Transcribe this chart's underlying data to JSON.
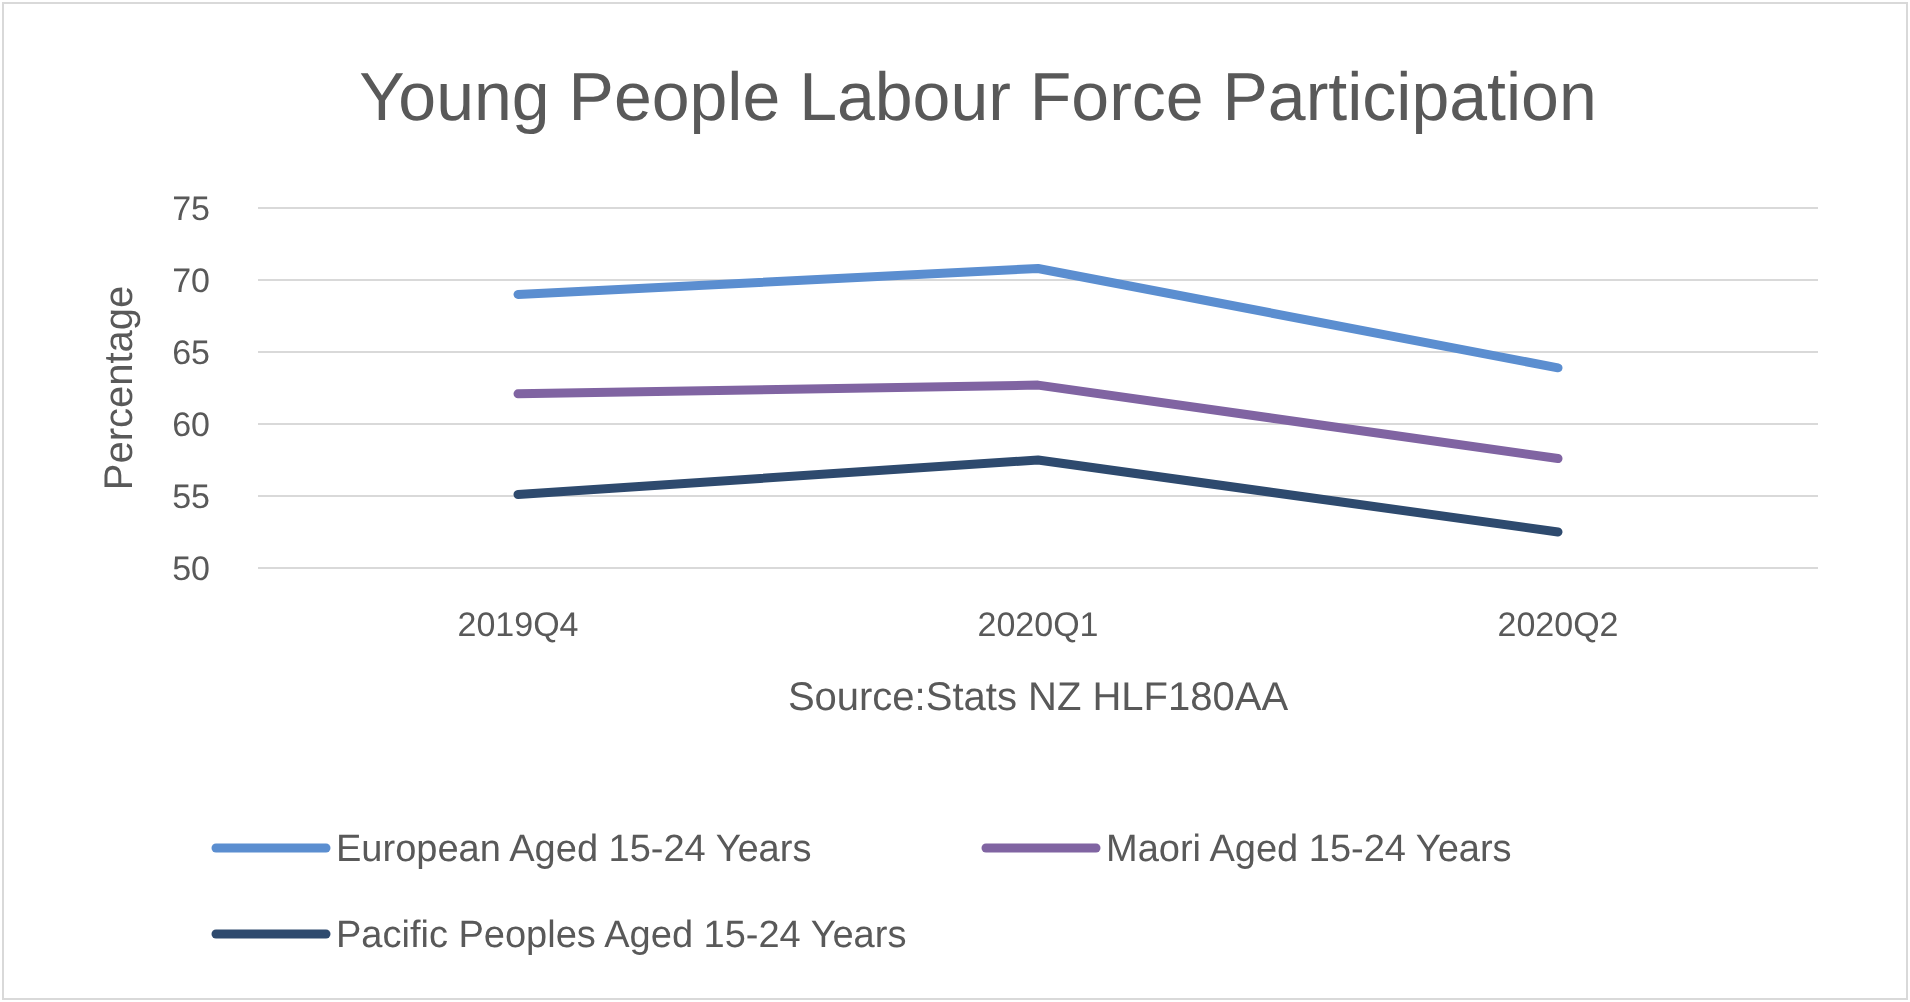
{
  "chart_data": {
    "type": "line",
    "title": "Young People Labour Force Participation",
    "xlabel": "Source:Stats NZ HLF180AA",
    "ylabel": "Percentage",
    "categories": [
      "2019Q4",
      "2020Q1",
      "2020Q2"
    ],
    "series": [
      {
        "name": "European Aged 15-24 Years",
        "color": "#5b8ed0",
        "values": [
          69,
          70.8,
          63.9
        ]
      },
      {
        "name": "Maori Aged 15-24 Years",
        "color": "#8064a2",
        "values": [
          62.1,
          62.7,
          57.6
        ]
      },
      {
        "name": "Pacific Peoples Aged 15-24 Years",
        "color": "#2e4a6e",
        "values": [
          55.1,
          57.5,
          52.5
        ]
      }
    ],
    "ylim": [
      50,
      75
    ],
    "yticks": [
      50,
      55,
      60,
      65,
      70,
      75
    ],
    "grid": "y",
    "legend": "bottom",
    "marker": "none",
    "line_style": "solid"
  }
}
